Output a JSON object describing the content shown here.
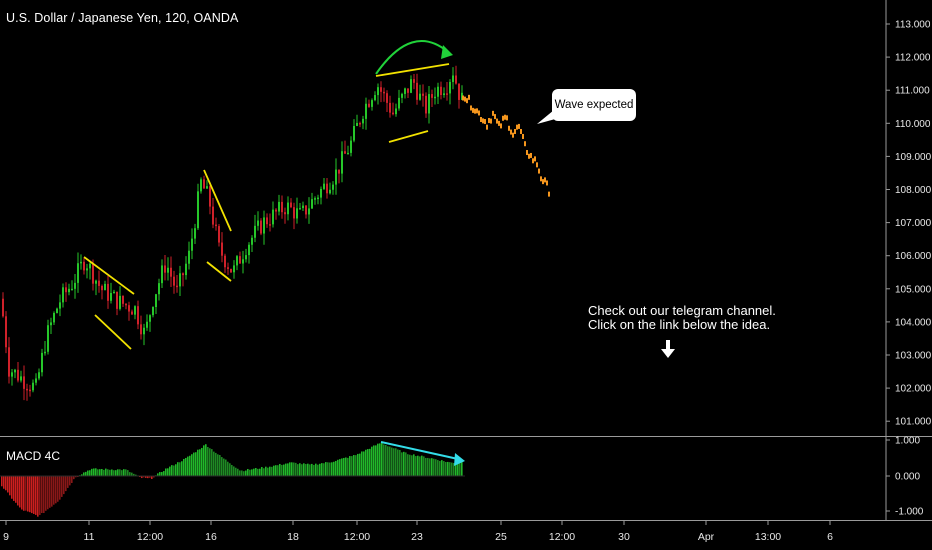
{
  "symbol_title": "U.S. Dollar / Japanese Yen, 120, OANDA",
  "indicator_label": "MACD 4C",
  "callout_text": "Wave expected",
  "note_line1": "Check out our telegram channel.",
  "note_line2": "Click on the link below the idea.",
  "price_axis": [
    "113.000",
    "112.000",
    "111.000",
    "110.000",
    "109.000",
    "108.000",
    "107.000",
    "106.000",
    "105.000",
    "104.000",
    "103.000",
    "102.000",
    "101.000"
  ],
  "macd_axis": [
    "1.000",
    "0.000",
    "-1.000"
  ],
  "time_axis": [
    "9",
    "11",
    "12:00",
    "16",
    "18",
    "12:00",
    "23",
    "25",
    "12:00",
    "30",
    "Apr",
    "13:00",
    "6"
  ],
  "colors": {
    "bull": "#26c72a",
    "bear": "#d0212a",
    "projection": "#f5961d",
    "pattern": "#f2e200",
    "arc": "#21d33a",
    "macd_arrow": "#33dce8",
    "macd_bull": "#21b82a",
    "macd_bear": "#cc1f1f",
    "axis": "#9a9a9a"
  },
  "icons": {
    "arrow": "arrow-down-icon"
  }
}
